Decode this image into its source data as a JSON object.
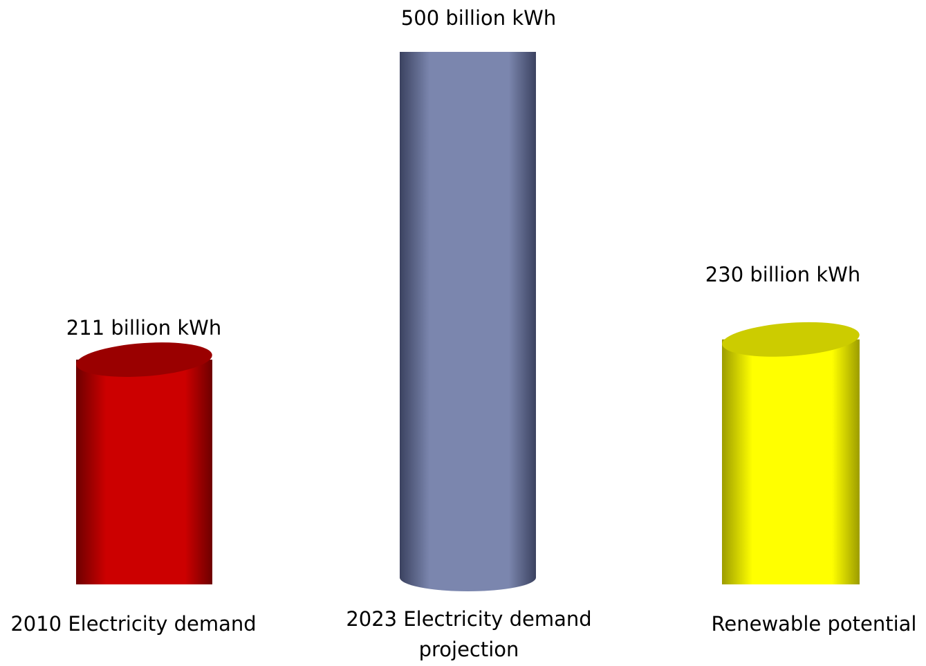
{
  "chart_data": {
    "type": "bar",
    "title": "",
    "xlabel": "",
    "ylabel": "",
    "categories": [
      [
        "2010 Electricity demand"
      ],
      [
        "2023 Electricity demand",
        "projection"
      ],
      [
        "Renewable potential"
      ]
    ],
    "values": [
      211,
      500,
      230
    ],
    "unit": "billion kWh",
    "data_labels": [
      "211 billion  kWh",
      "500 billion kWh",
      "230 billion kWh"
    ],
    "ylim": [
      0,
      500
    ],
    "grid": false,
    "legend": "none",
    "colors": [
      {
        "body": "#cc0000",
        "dark": "#6e0000",
        "top": "#9a0000"
      },
      {
        "body": "#7b86ae",
        "dark": "#3b4260",
        "top": "#7b86ae"
      },
      {
        "body": "#ffff00",
        "dark": "#9c9c00",
        "top": "#cccc00"
      }
    ]
  }
}
